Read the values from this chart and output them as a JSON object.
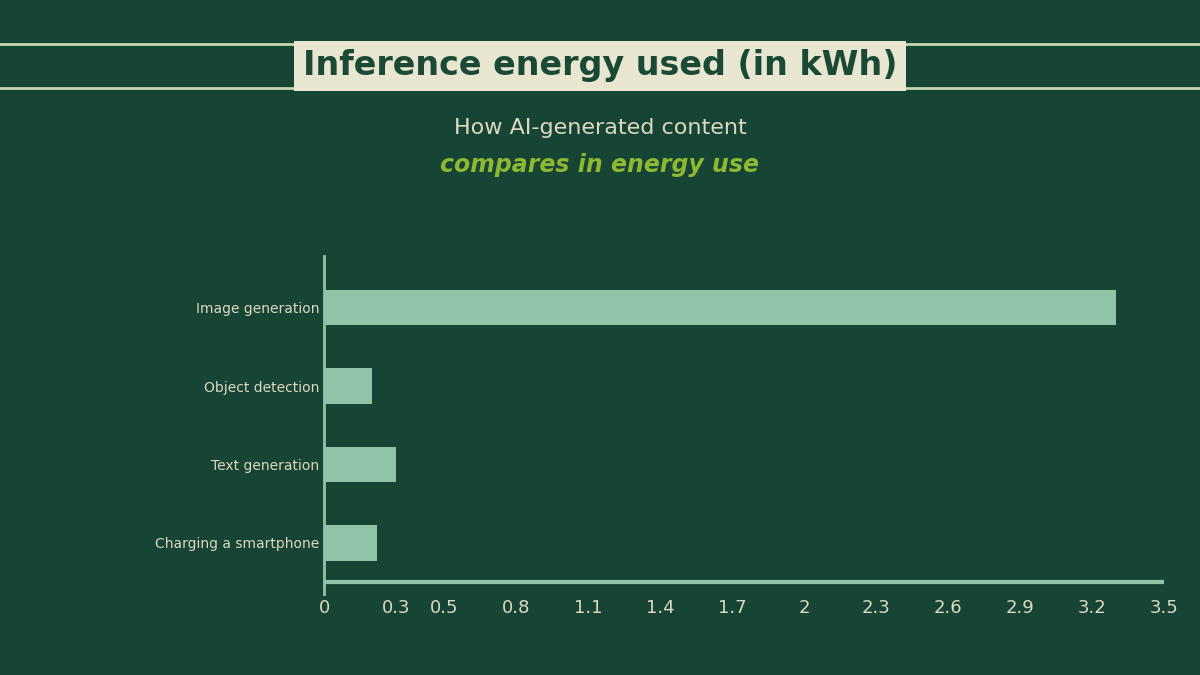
{
  "categories": [
    "Image generation",
    "Object detection",
    "Text generation",
    "Charging a smartphone"
  ],
  "values": [
    3.3,
    0.2,
    0.3,
    0.22
  ],
  "bar_color": "#90c4a8",
  "background_color": "#164435",
  "title_box_text": "Inference energy used (in kWh)",
  "title_box_bg": "#e8e5d0",
  "title_box_text_color": "#1a4a35",
  "subtitle_line1": "How AI-generated content",
  "subtitle_line2": "compares in energy use",
  "subtitle_line1_color": "#ddd8c0",
  "subtitle_line2_color": "#8db832",
  "label_color": "#ddd8c0",
  "tick_color": "#ddd8c0",
  "axis_line_color": "#90c4a8",
  "xlim": [
    0,
    3.5
  ],
  "xticks": [
    0,
    0.3,
    0.5,
    0.8,
    1.1,
    1.4,
    1.7,
    2,
    2.3,
    2.6,
    2.9,
    3.2,
    3.5
  ],
  "xtick_labels": [
    "0",
    "0.3",
    "0.5",
    "0.8",
    "1.1",
    "1.4",
    "1.7",
    "2",
    "2.3",
    "2.6",
    "2.9",
    "3.2",
    "3.5"
  ],
  "title_fontsize": 24,
  "subtitle1_fontsize": 16,
  "subtitle2_fontsize": 17,
  "label_fontsize": 14,
  "tick_fontsize": 13,
  "separator_line_color": "#c8d5b0"
}
